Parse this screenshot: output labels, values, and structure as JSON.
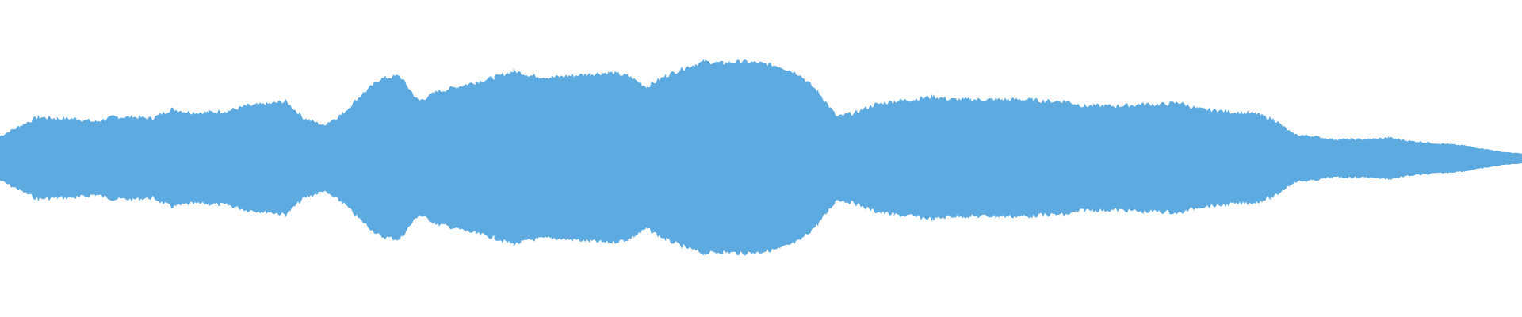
{
  "chart_data": {
    "type": "area",
    "title": "",
    "xlabel": "",
    "ylabel": "",
    "ylim": [
      -1,
      1
    ],
    "grid": false,
    "legend": "none",
    "color": "#5DAAE0",
    "background": "#FFFFFF",
    "symmetric": true,
    "envelope": [
      0.14,
      0.2,
      0.26,
      0.25,
      0.25,
      0.23,
      0.26,
      0.26,
      0.25,
      0.31,
      0.29,
      0.29,
      0.3,
      0.33,
      0.34,
      0.36,
      0.25,
      0.21,
      0.28,
      0.4,
      0.5,
      0.52,
      0.36,
      0.42,
      0.45,
      0.48,
      0.51,
      0.55,
      0.52,
      0.51,
      0.52,
      0.53,
      0.54,
      0.52,
      0.45,
      0.52,
      0.57,
      0.61,
      0.6,
      0.61,
      0.6,
      0.58,
      0.53,
      0.42,
      0.26,
      0.29,
      0.34,
      0.36,
      0.37,
      0.39,
      0.37,
      0.37,
      0.37,
      0.37,
      0.37,
      0.36,
      0.36,
      0.33,
      0.33,
      0.33,
      0.34,
      0.34,
      0.35,
      0.31,
      0.3,
      0.29,
      0.28,
      0.24,
      0.15,
      0.14,
      0.12,
      0.12,
      0.12,
      0.13,
      0.11,
      0.1,
      0.09,
      0.08,
      0.06,
      0.04,
      0.03
    ]
  }
}
